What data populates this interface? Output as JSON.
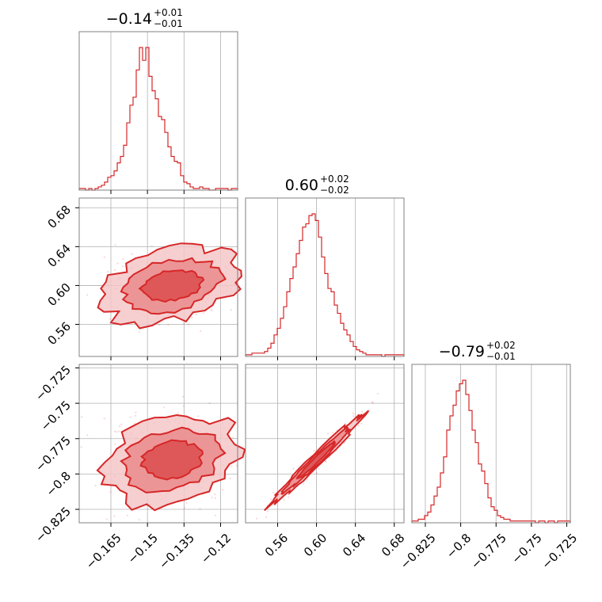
{
  "figure": {
    "type": "corner",
    "colors": {
      "accent": "#d62728",
      "fill_light": "#f4c7c8",
      "fill_mid": "#ea8b8c",
      "grid": "#b0b0b0",
      "frame": "#808080"
    }
  },
  "chart_data": [
    {
      "type": "histogram",
      "panel": "hist-param1",
      "title_main": "−0.14",
      "title_sup": "+0.01",
      "title_sub": "−0.01",
      "xlim": [
        -0.178,
        -0.113
      ],
      "xticks": [
        -0.165,
        -0.15,
        -0.135,
        -0.12
      ],
      "bin_edges_start": -0.178,
      "bin_width": 0.0013,
      "counts": [
        0.01,
        0.01,
        0,
        0.01,
        0,
        0.01,
        0.02,
        0.03,
        0.05,
        0.08,
        0.09,
        0.12,
        0.17,
        0.21,
        0.28,
        0.42,
        0.53,
        0.58,
        0.75,
        0.89,
        0.81,
        0.89,
        0.71,
        0.62,
        0.57,
        0.46,
        0.44,
        0.36,
        0.27,
        0.21,
        0.18,
        0.17,
        0.09,
        0.05,
        0.04,
        0.02,
        0.01,
        0.01,
        0.02,
        0.01,
        0.01,
        0,
        0,
        0.01,
        0.01,
        0.01,
        0.01,
        0,
        0.01,
        0.01
      ]
    },
    {
      "type": "histogram",
      "panel": "hist-param2",
      "title_main": "0.60",
      "title_sup": "+0.02",
      "title_sub": "−0.02",
      "xlim": [
        0.527,
        0.69
      ],
      "xticks": [
        0.56,
        0.6,
        0.64,
        0.68
      ],
      "bin_edges_start": 0.527,
      "bin_width": 0.00326,
      "counts": [
        0.01,
        0.01,
        0.02,
        0.02,
        0.02,
        0.02,
        0.03,
        0.05,
        0.08,
        0.13,
        0.17,
        0.23,
        0.3,
        0.39,
        0.47,
        0.54,
        0.62,
        0.7,
        0.78,
        0.8,
        0.85,
        0.86,
        0.82,
        0.72,
        0.6,
        0.5,
        0.41,
        0.39,
        0.31,
        0.26,
        0.2,
        0.16,
        0.13,
        0.09,
        0.06,
        0.04,
        0.03,
        0.02,
        0.01,
        0.01,
        0.01,
        0.01,
        0.01,
        0,
        0.01,
        0.01,
        0.01,
        0.01,
        0.01,
        0.01
      ]
    },
    {
      "type": "histogram",
      "panel": "hist-param3",
      "title_main": "−0.79",
      "title_sup": "+0.02",
      "title_sub": "−0.01",
      "xlim": [
        -0.8345,
        -0.7225
      ],
      "xticks": [
        -0.825,
        -0.8,
        -0.775,
        -0.75,
        -0.725
      ],
      "bin_edges_start": -0.8345,
      "bin_width": 0.00224,
      "counts": [
        0.01,
        0.01,
        0.02,
        0.02,
        0.04,
        0.06,
        0.1,
        0.15,
        0.2,
        0.28,
        0.37,
        0.52,
        0.6,
        0.66,
        0.74,
        0.78,
        0.8,
        0.72,
        0.63,
        0.52,
        0.45,
        0.33,
        0.29,
        0.22,
        0.14,
        0.09,
        0.07,
        0.04,
        0.03,
        0.02,
        0.02,
        0.01,
        0.01,
        0.01,
        0.01,
        0.01,
        0.01,
        0.01,
        0.01,
        0,
        0.01,
        0.01,
        0,
        0.01,
        0.01,
        0,
        0.01,
        0.01,
        0.01,
        0.01
      ]
    },
    {
      "type": "density2d",
      "panel": "joint-param1-param2",
      "xlim": [
        -0.178,
        -0.113
      ],
      "ylim": [
        0.527,
        0.69
      ],
      "yticks": [
        0.56,
        0.6,
        0.64,
        0.68
      ],
      "center": [
        -0.14,
        0.6
      ],
      "major_sd": 0.018,
      "minor_sd": 0.0016,
      "tilt_slope": 2.46
    },
    {
      "type": "density2d",
      "panel": "joint-param1-param3",
      "xlim": [
        -0.178,
        -0.113
      ],
      "ylim": [
        -0.8345,
        -0.7225
      ],
      "yticks": [
        -0.825,
        -0.8,
        -0.775,
        -0.75,
        -0.725
      ],
      "center": [
        -0.14,
        -0.79
      ],
      "major_sd": 0.015,
      "minor_sd": 0.0016,
      "tilt_slope": 1.64
    },
    {
      "type": "density2d",
      "panel": "joint-param2-param3",
      "xlim": [
        0.527,
        0.69
      ],
      "ylim": [
        -0.8345,
        -0.7225
      ],
      "center": [
        0.6,
        -0.79
      ],
      "major_sd": 0.025,
      "minor_sd": 0.0003,
      "tilt_slope": 0.667
    }
  ]
}
